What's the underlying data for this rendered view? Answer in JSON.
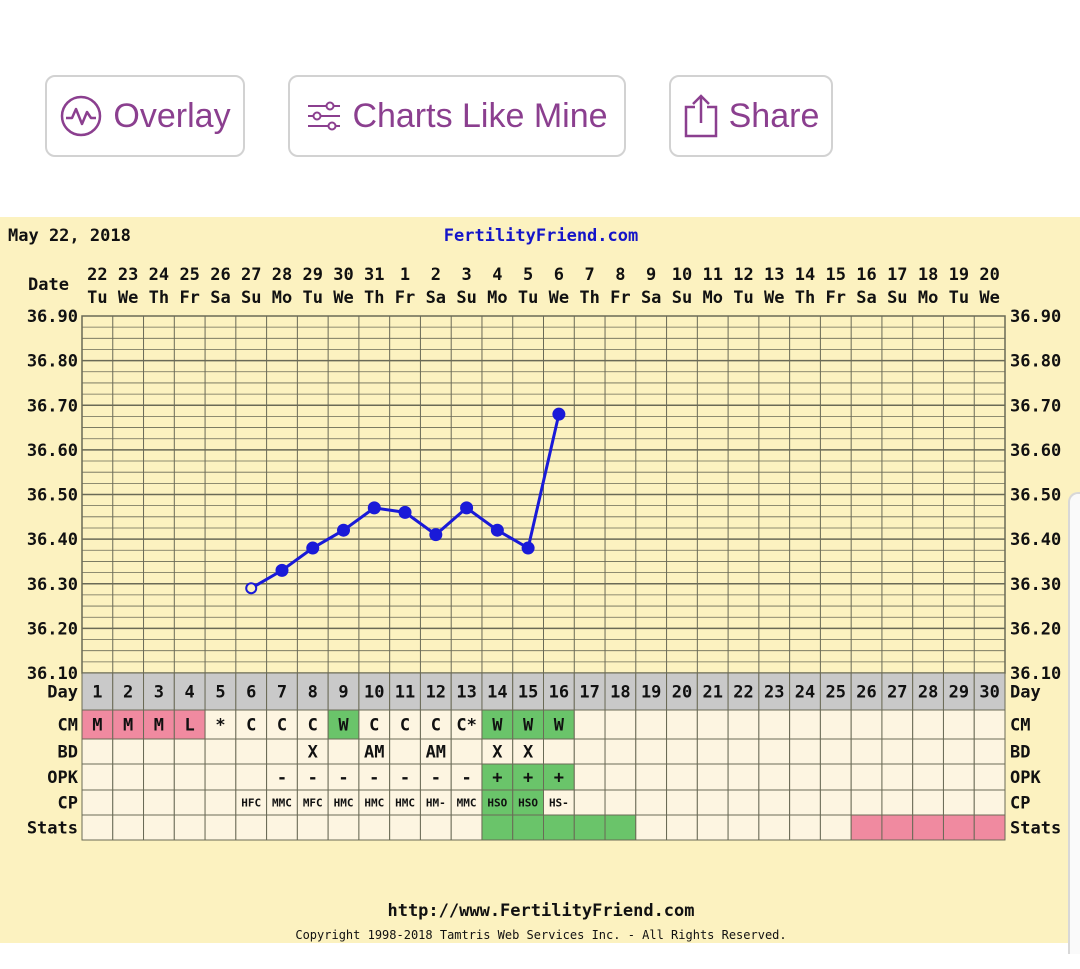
{
  "toolbar": {
    "overlay_label": "Overlay",
    "charts_like_mine_label": "Charts Like Mine",
    "share_label": "Share",
    "accent_color": "#8b3f8f"
  },
  "chart_header": {
    "date": "May 22, 2018",
    "site": "FertilityFriend.com",
    "row_label": "Date"
  },
  "footer": {
    "url": "http://www.FertilityFriend.com",
    "copyright": "Copyright 1998-2018 Tamtris Web Services Inc. - All Rights Reserved."
  },
  "chart_data": {
    "type": "line",
    "title": "",
    "ylim": [
      36.1,
      36.9
    ],
    "y_ticks": [
      "36.90",
      "36.80",
      "36.70",
      "36.60",
      "36.50",
      "36.40",
      "36.30",
      "36.20",
      "36.10"
    ],
    "dates": [
      "22",
      "23",
      "24",
      "25",
      "26",
      "27",
      "28",
      "29",
      "30",
      "31",
      "1",
      "2",
      "3",
      "4",
      "5",
      "6",
      "7",
      "8",
      "9",
      "10",
      "11",
      "12",
      "13",
      "14",
      "15",
      "16",
      "17",
      "18",
      "19",
      "20"
    ],
    "weekdays": [
      "Tu",
      "We",
      "Th",
      "Fr",
      "Sa",
      "Su",
      "Mo",
      "Tu",
      "We",
      "Th",
      "Fr",
      "Sa",
      "Su",
      "Mo",
      "Tu",
      "We",
      "Th",
      "Fr",
      "Sa",
      "Su",
      "Mo",
      "Tu",
      "We",
      "Th",
      "Fr",
      "Sa",
      "Su",
      "Mo",
      "Tu",
      "We"
    ],
    "days": [
      "1",
      "2",
      "3",
      "4",
      "5",
      "6",
      "7",
      "8",
      "9",
      "10",
      "11",
      "12",
      "13",
      "14",
      "15",
      "16",
      "17",
      "18",
      "19",
      "20",
      "21",
      "22",
      "23",
      "24",
      "25",
      "26",
      "27",
      "28",
      "29",
      "30"
    ],
    "series": [
      {
        "values": [
          null,
          null,
          null,
          null,
          null,
          36.29,
          36.33,
          36.38,
          36.42,
          36.47,
          36.46,
          36.41,
          36.47,
          36.42,
          36.38,
          36.68,
          null,
          null,
          null,
          null,
          null,
          null,
          null,
          null,
          null,
          null,
          null,
          null,
          null,
          null
        ],
        "open_points": [
          5
        ],
        "color": "#1a1ad8"
      }
    ],
    "rows": [
      {
        "label": "Day"
      },
      {
        "label": "CM",
        "cells": [
          "M",
          "M",
          "M",
          "L",
          "*",
          "C",
          "C",
          "C",
          "W",
          "C",
          "C",
          "C",
          "C*",
          "W",
          "W",
          "W",
          "",
          "",
          "",
          "",
          "",
          "",
          "",
          "",
          "",
          "",
          "",
          "",
          "",
          ""
        ],
        "colors": [
          "pink",
          "pink",
          "pink",
          "pink",
          "",
          "",
          "",
          "",
          "green",
          "",
          "",
          "",
          "",
          "green",
          "green",
          "green",
          "",
          "",
          "",
          "",
          "",
          "",
          "",
          "",
          "",
          "",
          "",
          "",
          "",
          ""
        ]
      },
      {
        "label": "BD",
        "cells": [
          "",
          "",
          "",
          "",
          "",
          "",
          "",
          "X",
          "",
          "AM",
          "",
          "AM",
          "",
          "X",
          "X",
          "",
          "",
          "",
          "",
          "",
          "",
          "",
          "",
          "",
          "",
          "",
          "",
          "",
          "",
          ""
        ]
      },
      {
        "label": "OPK",
        "cells": [
          "",
          "",
          "",
          "",
          "",
          "",
          "-",
          "-",
          "-",
          "-",
          "-",
          "-",
          "-",
          "+",
          "+",
          "+",
          "",
          "",
          "",
          "",
          "",
          "",
          "",
          "",
          "",
          "",
          "",
          "",
          "",
          ""
        ],
        "colors": [
          "",
          "",
          "",
          "",
          "",
          "",
          "",
          "",
          "",
          "",
          "",
          "",
          "",
          "green",
          "green",
          "green",
          "",
          "",
          "",
          "",
          "",
          "",
          "",
          "",
          "",
          "",
          "",
          "",
          "",
          ""
        ]
      },
      {
        "label": "CP",
        "cells": [
          "",
          "",
          "",
          "",
          "",
          "HFC",
          "MMC",
          "MFC",
          "HMC",
          "HMC",
          "HMC",
          "HM-",
          "MMC",
          "HSO",
          "HSO",
          "HS-",
          "",
          "",
          "",
          "",
          "",
          "",
          "",
          "",
          "",
          "",
          "",
          "",
          "",
          ""
        ],
        "colors": [
          "",
          "",
          "",
          "",
          "",
          "",
          "",
          "",
          "",
          "",
          "",
          "",
          "",
          "green",
          "green",
          "",
          "",
          "",
          "",
          "",
          "",
          "",
          "",
          "",
          "",
          "",
          "",
          "",
          "",
          ""
        ]
      },
      {
        "label": "Stats",
        "cells": [],
        "colors": [
          "",
          "",
          "",
          "",
          "",
          "",
          "",
          "",
          "",
          "",
          "",
          "",
          "",
          "green",
          "green",
          "green",
          "green",
          "green",
          "",
          "",
          "",
          "",
          "",
          "",
          "",
          "pink",
          "pink",
          "pink",
          "pink",
          "pink"
        ]
      }
    ],
    "colors": {
      "background": "#fcf2c0",
      "grid": "#6a6a56",
      "day_row": "#c9c9c9",
      "cell": "#fdf5e1",
      "pink": "#f08aa0",
      "green": "#6ac46a",
      "link": "#1515c8"
    }
  }
}
